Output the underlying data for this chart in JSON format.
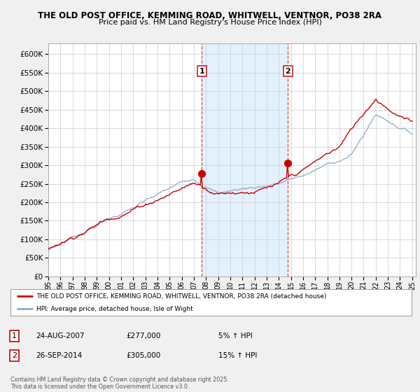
{
  "title1": "THE OLD POST OFFICE, KEMMING ROAD, WHITWELL, VENTNOR, PO38 2RA",
  "title2": "Price paid vs. HM Land Registry's House Price Index (HPI)",
  "ytick_values": [
    0,
    50000,
    100000,
    150000,
    200000,
    250000,
    300000,
    350000,
    400000,
    450000,
    500000,
    550000,
    600000
  ],
  "ylim": [
    0,
    630000
  ],
  "xlim_start": 1995.3,
  "xlim_end": 2025.3,
  "plot_bg_color": "#ffffff",
  "fig_bg_color": "#f0f0f0",
  "red_line_color": "#cc0000",
  "blue_line_color": "#88aacc",
  "marker1_year": 2007.65,
  "marker1_value": 277000,
  "marker2_year": 2014.75,
  "marker2_value": 305000,
  "legend_line1": "THE OLD POST OFFICE, KEMMING ROAD, WHITWELL, VENTNOR, PO38 2RA (detached house)",
  "legend_line2": "HPI: Average price, detached house, Isle of Wight",
  "table_row1": [
    "1",
    "24-AUG-2007",
    "£277,000",
    "5% ↑ HPI"
  ],
  "table_row2": [
    "2",
    "26-SEP-2014",
    "£305,000",
    "15% ↑ HPI"
  ],
  "footer": "Contains HM Land Registry data © Crown copyright and database right 2025.\nThis data is licensed under the Open Government Licence v3.0.",
  "vline1_x": 2007.65,
  "vline2_x": 2014.75,
  "shade1_start": 2007.65,
  "shade1_end": 2014.75,
  "xtick_years": [
    1995,
    1996,
    1997,
    1998,
    1999,
    2000,
    2001,
    2002,
    2003,
    2004,
    2005,
    2006,
    2007,
    2008,
    2009,
    2010,
    2011,
    2012,
    2013,
    2014,
    2015,
    2016,
    2017,
    2018,
    2019,
    2020,
    2021,
    2022,
    2023,
    2024,
    2025
  ]
}
